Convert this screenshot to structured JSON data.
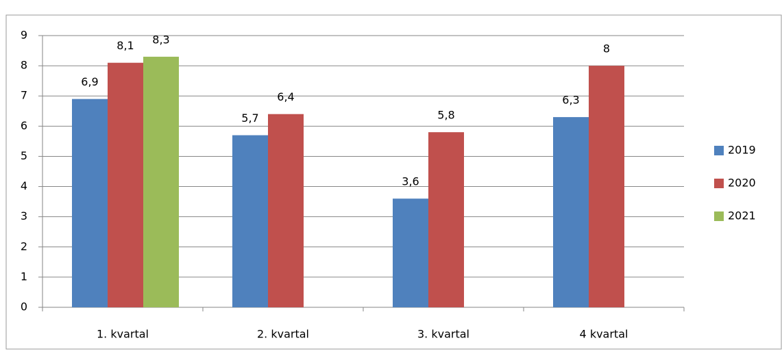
{
  "chart_data": {
    "type": "bar",
    "categories": [
      "1. kvartal",
      "2. kvartal",
      "3. kvartal",
      "4 kvartal"
    ],
    "series": [
      {
        "name": "2019",
        "color": "#4f81bd",
        "values": [
          6.9,
          5.7,
          3.6,
          6.3
        ],
        "value_labels": [
          "6,9",
          "5,7",
          "3,6",
          "6,3"
        ]
      },
      {
        "name": "2020",
        "color": "#c0504d",
        "values": [
          8.1,
          6.4,
          5.8,
          8
        ],
        "value_labels": [
          "8,1",
          "6,4",
          "5,8",
          "8"
        ]
      },
      {
        "name": "2021",
        "color": "#9bbb59",
        "values": [
          8.3,
          null,
          null,
          null
        ],
        "value_labels": [
          "8,3",
          null,
          null,
          null
        ]
      }
    ],
    "ylim": [
      0,
      9
    ],
    "yticks": [
      0,
      1,
      2,
      3,
      4,
      5,
      6,
      7,
      8,
      9
    ],
    "grid": true,
    "legend": "right"
  }
}
